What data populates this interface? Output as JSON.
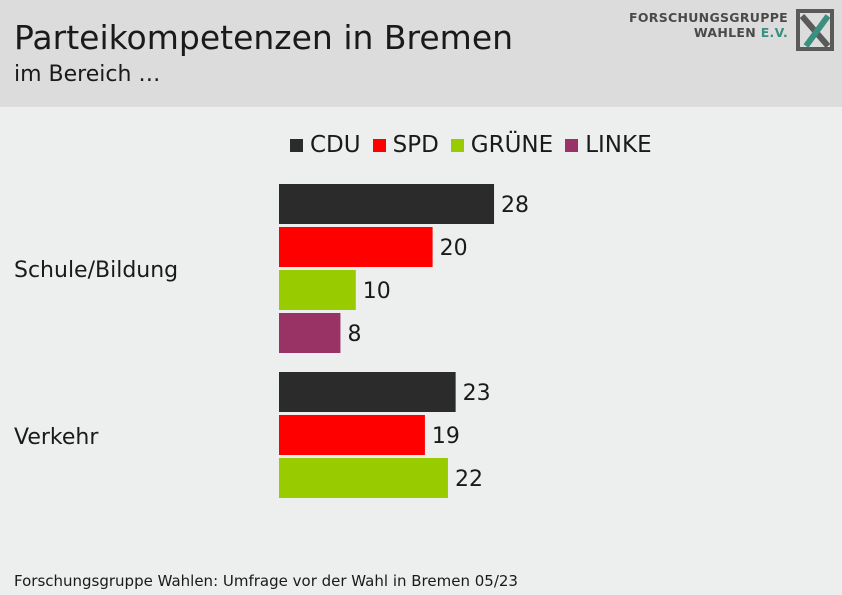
{
  "header": {
    "title": "Parteikompetenzen in Bremen",
    "subtitle": "im Bereich …",
    "logo_line1": "FORSCHUNGSGRUPPE",
    "logo_line2": "WAHLEN",
    "logo_ev": "E.V."
  },
  "footer": {
    "source": "Forschungsgruppe Wahlen: Umfrage vor der Wahl in Bremen 05/23"
  },
  "chart_data": {
    "type": "bar",
    "orientation": "horizontal",
    "title": "Parteikompetenzen in Bremen",
    "subtitle": "im Bereich …",
    "legend_position": "top",
    "grid": false,
    "xlim": [
      0,
      100
    ],
    "categories": [
      "Schule/Bildung",
      "Verkehr"
    ],
    "series": [
      {
        "name": "CDU",
        "color": "#2b2b2b",
        "values": [
          28,
          23
        ]
      },
      {
        "name": "SPD",
        "color": "#ff0000",
        "values": [
          20,
          19
        ]
      },
      {
        "name": "GRÜNE",
        "color": "#99cc00",
        "values": [
          10,
          22
        ]
      },
      {
        "name": "LINKE",
        "color": "#993366",
        "values": [
          8,
          null
        ]
      }
    ]
  }
}
